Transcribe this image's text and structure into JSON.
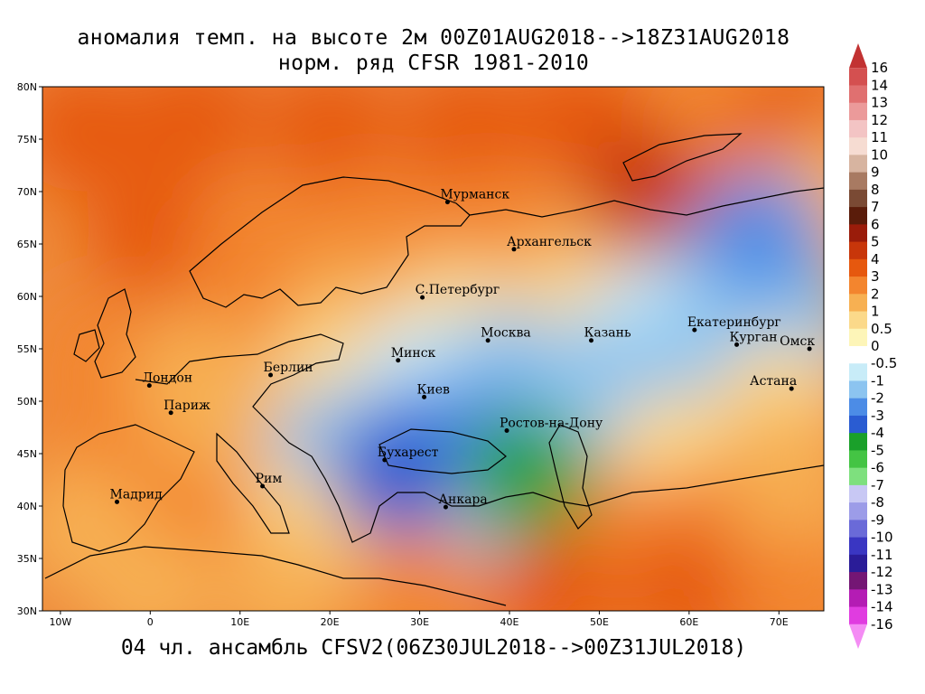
{
  "title_line1": "аномалия темп. на высоте 2м 00Z01AUG2018-->18Z31AUG2018",
  "title_line2": "норм. ряд CFSR 1981-2010",
  "footer": "04 чл. ансамбль CFSV2(06Z30JUL2018-->00Z31JUL2018)",
  "lat_labels": [
    "80N",
    "75N",
    "70N",
    "65N",
    "60N",
    "55N",
    "50N",
    "45N",
    "40N",
    "35N",
    "30N"
  ],
  "lat_values": [
    80,
    75,
    70,
    65,
    60,
    55,
    50,
    45,
    40,
    35,
    30
  ],
  "lon_labels": [
    "10W",
    "0",
    "10E",
    "20E",
    "30E",
    "40E",
    "50E",
    "60E",
    "70E"
  ],
  "lon_values": [
    -10,
    0,
    10,
    20,
    30,
    40,
    50,
    60,
    70
  ],
  "map_extent": {
    "lon_min": -12,
    "lon_max": 75,
    "lat_min": 30,
    "lat_max": 80
  },
  "cities": [
    {
      "name": "Мурманск",
      "lon": 33.1,
      "lat": 69.0
    },
    {
      "name": "Архангельск",
      "lon": 40.5,
      "lat": 64.5
    },
    {
      "name": "С.Петербург",
      "lon": 30.3,
      "lat": 59.9
    },
    {
      "name": "Москва",
      "lon": 37.6,
      "lat": 55.8
    },
    {
      "name": "Казань",
      "lon": 49.1,
      "lat": 55.8
    },
    {
      "name": "Екатеринбург",
      "lon": 60.6,
      "lat": 56.8
    },
    {
      "name": "Курган",
      "lon": 65.3,
      "lat": 55.4
    },
    {
      "name": "Омск",
      "lon": 73.4,
      "lat": 55.0
    },
    {
      "name": "Астана",
      "lon": 71.4,
      "lat": 51.2
    },
    {
      "name": "Минск",
      "lon": 27.6,
      "lat": 53.9
    },
    {
      "name": "Берлин",
      "lon": 13.4,
      "lat": 52.5
    },
    {
      "name": "Лондон",
      "lon": -0.1,
      "lat": 51.5
    },
    {
      "name": "Париж",
      "lon": 2.3,
      "lat": 48.9
    },
    {
      "name": "Киев",
      "lon": 30.5,
      "lat": 50.4
    },
    {
      "name": "Ростов-на-Дону",
      "lon": 39.7,
      "lat": 47.2
    },
    {
      "name": "Бухарест",
      "lon": 26.1,
      "lat": 44.4
    },
    {
      "name": "Рим",
      "lon": 12.5,
      "lat": 41.9
    },
    {
      "name": "Мадрид",
      "lon": -3.7,
      "lat": 40.4
    },
    {
      "name": "Анкара",
      "lon": 32.9,
      "lat": 39.9
    }
  ],
  "colorbar": {
    "labels": [
      "16",
      "14",
      "13",
      "12",
      "11",
      "10",
      "9",
      "8",
      "7",
      "6",
      "5",
      "4",
      "3",
      "2",
      "1",
      "0.5",
      "0",
      "-0.5",
      "-1",
      "-2",
      "-3",
      "-4",
      "-5",
      "-6",
      "-7",
      "-8",
      "-9",
      "-10",
      "-11",
      "-12",
      "-13",
      "-14",
      "-16"
    ],
    "colors": [
      "#c23232",
      "#d45050",
      "#e07070",
      "#eb9a9a",
      "#f3c4c4",
      "#f6dcd2",
      "#d7b4a0",
      "#a87a62",
      "#7a4a34",
      "#5a1c0a",
      "#9a1c0a",
      "#c8360a",
      "#e6580e",
      "#f3852e",
      "#f7b052",
      "#fbd98a",
      "#fdf5b8",
      "#ffffff",
      "#c8ecf8",
      "#8cc4f0",
      "#4c8ce6",
      "#2a5cd2",
      "#1aa02a",
      "#44c444",
      "#7ee07e",
      "#c8c8f4",
      "#9c9ce8",
      "#6a6ad8",
      "#3a36c2",
      "#2a1c98",
      "#741674",
      "#b41cb4",
      "#e03ce0",
      "#f48cf4"
    ]
  },
  "field": [
    {
      "lon": -8,
      "lat": 76,
      "v": 3
    },
    {
      "lon": 5,
      "lat": 77,
      "v": 3
    },
    {
      "lon": 20,
      "lat": 76,
      "v": 3
    },
    {
      "lon": 35,
      "lat": 76,
      "v": 3
    },
    {
      "lon": 48,
      "lat": 77,
      "v": 3
    },
    {
      "lon": 62,
      "lat": 76,
      "v": 2.5
    },
    {
      "lon": 72,
      "lat": 76,
      "v": 3
    },
    {
      "lon": 0,
      "lat": 66,
      "v": 3
    },
    {
      "lon": 12,
      "lat": 65,
      "v": 2.5
    },
    {
      "lon": 25,
      "lat": 66,
      "v": 2.5
    },
    {
      "lon": 38,
      "lat": 66,
      "v": 2.5
    },
    {
      "lon": 52,
      "lat": 66,
      "v": 1
    },
    {
      "lon": 62,
      "lat": 64,
      "v": -1.5
    },
    {
      "lon": 70,
      "lat": 62,
      "v": -1
    },
    {
      "lon": 75,
      "lat": 70,
      "v": 1
    },
    {
      "lon": 10,
      "lat": 58,
      "v": 2
    },
    {
      "lon": 22,
      "lat": 58,
      "v": 1.5
    },
    {
      "lon": 34,
      "lat": 58,
      "v": 0.5
    },
    {
      "lon": 45,
      "lat": 58,
      "v": 0.5
    },
    {
      "lon": 55,
      "lat": 57,
      "v": -0.5
    },
    {
      "lon": 64,
      "lat": 57,
      "v": -1.5
    },
    {
      "lon": 72,
      "lat": 56,
      "v": -1
    },
    {
      "lon": -5,
      "lat": 54,
      "v": 2
    },
    {
      "lon": 5,
      "lat": 52,
      "v": 1
    },
    {
      "lon": 20,
      "lat": 52,
      "v": 0.5
    },
    {
      "lon": 30,
      "lat": 52,
      "v": -0.5
    },
    {
      "lon": 40,
      "lat": 53,
      "v": -1
    },
    {
      "lon": 52,
      "lat": 52,
      "v": -1.5
    },
    {
      "lon": 62,
      "lat": 52,
      "v": -1
    },
    {
      "lon": 70,
      "lat": 50,
      "v": 0.5
    },
    {
      "lon": -5,
      "lat": 44,
      "v": 2
    },
    {
      "lon": 8,
      "lat": 45,
      "v": 1
    },
    {
      "lon": 20,
      "lat": 45,
      "v": -1.5
    },
    {
      "lon": 30,
      "lat": 46,
      "v": -2
    },
    {
      "lon": 38,
      "lat": 46,
      "v": -2
    },
    {
      "lon": 48,
      "lat": 45,
      "v": -1
    },
    {
      "lon": 58,
      "lat": 45,
      "v": 0.5
    },
    {
      "lon": 70,
      "lat": 44,
      "v": 1
    },
    {
      "lon": -8,
      "lat": 38,
      "v": 1.5
    },
    {
      "lon": 5,
      "lat": 38,
      "v": 2
    },
    {
      "lon": 18,
      "lat": 38,
      "v": 0.5
    },
    {
      "lon": 30,
      "lat": 38,
      "v": 1
    },
    {
      "lon": 40,
      "lat": 40,
      "v": -1
    },
    {
      "lon": 50,
      "lat": 38,
      "v": 2
    },
    {
      "lon": 62,
      "lat": 38,
      "v": 2
    },
    {
      "lon": 72,
      "lat": 38,
      "v": 1
    },
    {
      "lon": 0,
      "lat": 32,
      "v": 1.5
    },
    {
      "lon": 15,
      "lat": 32,
      "v": 1.5
    },
    {
      "lon": 30,
      "lat": 32,
      "v": 2
    },
    {
      "lon": 45,
      "lat": 32,
      "v": 3
    },
    {
      "lon": 60,
      "lat": 32,
      "v": 3
    },
    {
      "lon": 72,
      "lat": 32,
      "v": 2
    },
    {
      "lon": 42,
      "lat": 43,
      "v": -4
    },
    {
      "lon": 27,
      "lat": 43,
      "v": -3
    },
    {
      "lon": 55,
      "lat": 70,
      "v": 4
    },
    {
      "lon": 68,
      "lat": 66,
      "v": -2
    }
  ]
}
